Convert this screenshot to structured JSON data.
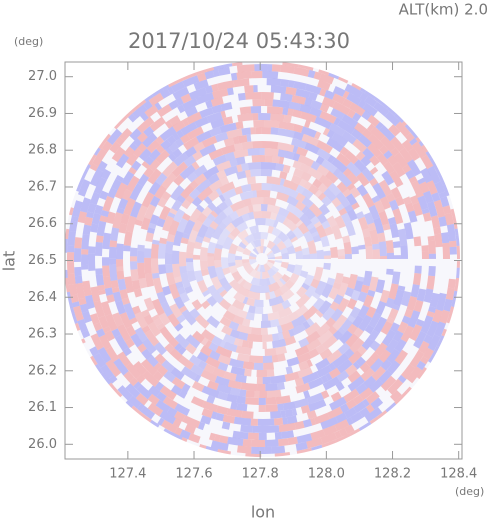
{
  "chart_data": {
    "type": "radar-ppi",
    "title": "2017/10/24 05:43:30",
    "subtitle": "ALT(km) 2.0",
    "x_label": "lon",
    "y_label": "lat",
    "x_unit": "(deg)",
    "y_unit": "(deg)",
    "xlim": [
      127.21,
      128.41
    ],
    "ylim": [
      25.96,
      27.04
    ],
    "xticks": [
      127.4,
      127.6,
      127.8,
      {
        "value": 128.0,
        "label": "128.0"
      },
      128.2,
      128.4
    ],
    "yticks": [
      {
        "value": 26.0,
        "label": "26.0"
      },
      26.1,
      26.2,
      26.3,
      26.4,
      26.5,
      26.6,
      26.7,
      26.8,
      26.9,
      {
        "value": 27.0,
        "label": "27.0"
      }
    ]
  }
}
